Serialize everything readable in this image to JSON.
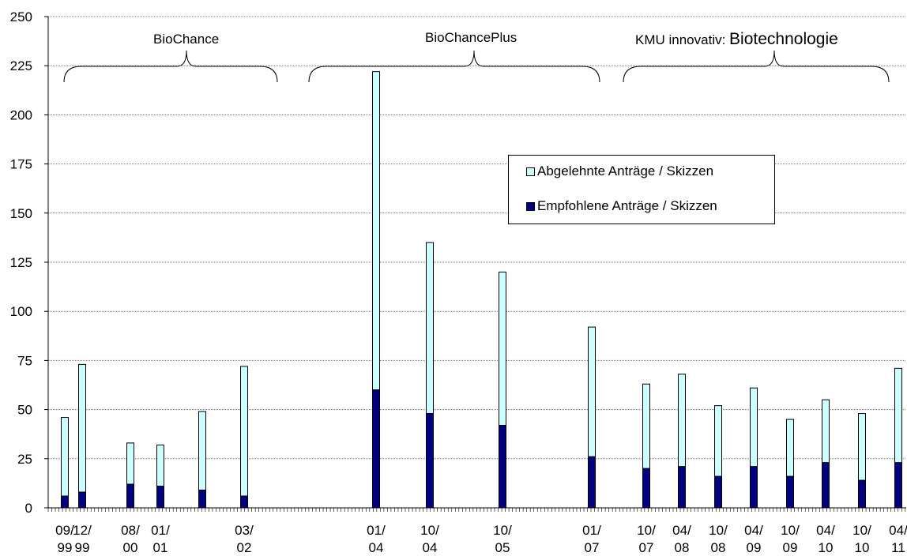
{
  "chart_data": {
    "type": "bar",
    "stacked": true,
    "ylim": [
      0,
      250
    ],
    "yticks": [
      0,
      25,
      50,
      75,
      100,
      125,
      150,
      175,
      200,
      225,
      250
    ],
    "grid": true,
    "legend_position": "center-right",
    "series": [
      {
        "name": "Abgelehnte Anträge / Skizzen",
        "color": "#ccffff"
      },
      {
        "name": "Empfohlene Anträge / Skizzen",
        "color": "#000080"
      }
    ],
    "bars": [
      {
        "label": [
          "09/",
          "99"
        ],
        "empfohlen": 6,
        "total": 46
      },
      {
        "label": [
          "12/",
          "99"
        ],
        "empfohlen": 8,
        "total": 73
      },
      {
        "label": [
          "08/",
          "00"
        ],
        "empfohlen": 12,
        "total": 33
      },
      {
        "label": [
          "01/",
          "01"
        ],
        "empfohlen": 11,
        "total": 32
      },
      {
        "label": [
          "",
          ""
        ],
        "empfohlen": 9,
        "total": 49
      },
      {
        "label": [
          "03/",
          "02"
        ],
        "empfohlen": 6,
        "total": 72
      },
      {
        "label": [
          "01/",
          "04"
        ],
        "empfohlen": 60,
        "total": 222
      },
      {
        "label": [
          "10/",
          "04"
        ],
        "empfohlen": 48,
        "total": 135
      },
      {
        "label": [
          "10/",
          "05"
        ],
        "empfohlen": 42,
        "total": 120
      },
      {
        "label": [
          "01/",
          "07"
        ],
        "empfohlen": 26,
        "total": 92
      },
      {
        "label": [
          "10/",
          "07"
        ],
        "empfohlen": 20,
        "total": 63
      },
      {
        "label": [
          "04/",
          "08"
        ],
        "empfohlen": 21,
        "total": 68
      },
      {
        "label": [
          "10/",
          "08"
        ],
        "empfohlen": 16,
        "total": 52
      },
      {
        "label": [
          "04/",
          "09"
        ],
        "empfohlen": 21,
        "total": 61
      },
      {
        "label": [
          "10/",
          "09"
        ],
        "empfohlen": 16,
        "total": 45
      },
      {
        "label": [
          "04/",
          "10"
        ],
        "empfohlen": 23,
        "total": 55
      },
      {
        "label": [
          "10/",
          "10"
        ],
        "empfohlen": 14,
        "total": 48
      },
      {
        "label": [
          "04/",
          "11"
        ],
        "empfohlen": 23,
        "total": 71
      }
    ],
    "groups": [
      {
        "name": "BioChance",
        "name_suffix": ""
      },
      {
        "name": "BioChancePlus",
        "name_suffix": ""
      },
      {
        "name": "KMU innovativ: ",
        "name_suffix": "Biotechnologie"
      }
    ]
  }
}
